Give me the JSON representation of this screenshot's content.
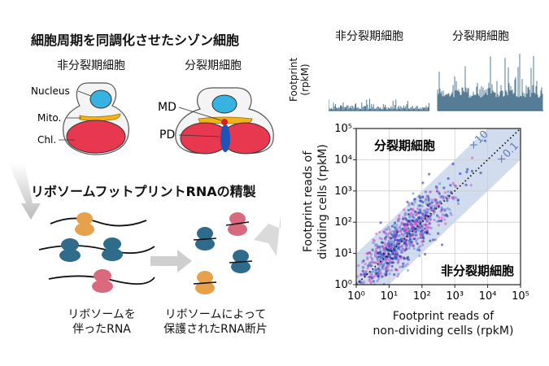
{
  "cell_section": {
    "title": "細胞周期を同調化させたシゾン細胞",
    "non_dividing_label": "非分裂期細胞",
    "dividing_label": "分裂期細胞",
    "organelle_labels": {
      "nucleus": "Nucleus",
      "mito": "Mito.",
      "chl": "Chl.",
      "md": "MD",
      "pd": "PD"
    }
  },
  "ribo_section": {
    "title": "リボソームフットプリントRNAの精製",
    "caption_left": "リボソームを\n伴ったRNA",
    "caption_right": "リボソームによって\n保護されたRNA断片"
  },
  "tracks": {
    "ylabel": "Footprint\n(rpkM)",
    "non_dividing_label": "非分裂期細胞",
    "dividing_label": "分裂期細胞"
  },
  "colors": {
    "ribosome_blue": "#2f6b8a",
    "ribosome_orange": "#e6a14a",
    "ribosome_pink": "#d96a7e",
    "nucleus": "#36b3e0",
    "chloroplast": "#e8384f",
    "mito": "#f0b31a",
    "band": "#c5d3ea",
    "track": "#2b5b7c"
  },
  "chart_data": {
    "type": "scatter",
    "xlabel": "Footprint reads of\nnon-dividing cells (rpkM)",
    "ylabel": "Footprint reads of\ndividing cells (rpkM)",
    "x_scale": "log",
    "y_scale": "log",
    "xlim": [
      1,
      100000
    ],
    "ylim": [
      1,
      100000
    ],
    "x_ticks": [
      "10⁰",
      "10¹",
      "10²",
      "10³",
      "10⁴",
      "10⁵"
    ],
    "y_ticks": [
      "10⁰",
      "10¹",
      "10²",
      "10³",
      "10⁴",
      "10⁵"
    ],
    "grid": true,
    "annotations": {
      "upper": "分裂期細胞",
      "lower": "非分裂期細胞",
      "x10": "×10",
      "x01": "×0.1"
    },
    "reference_lines": [
      {
        "name": "y = x",
        "style": "dotted"
      }
    ],
    "series_colors": [
      "#1a2aa8",
      "#d14fc9",
      "#5f86d8"
    ]
  }
}
